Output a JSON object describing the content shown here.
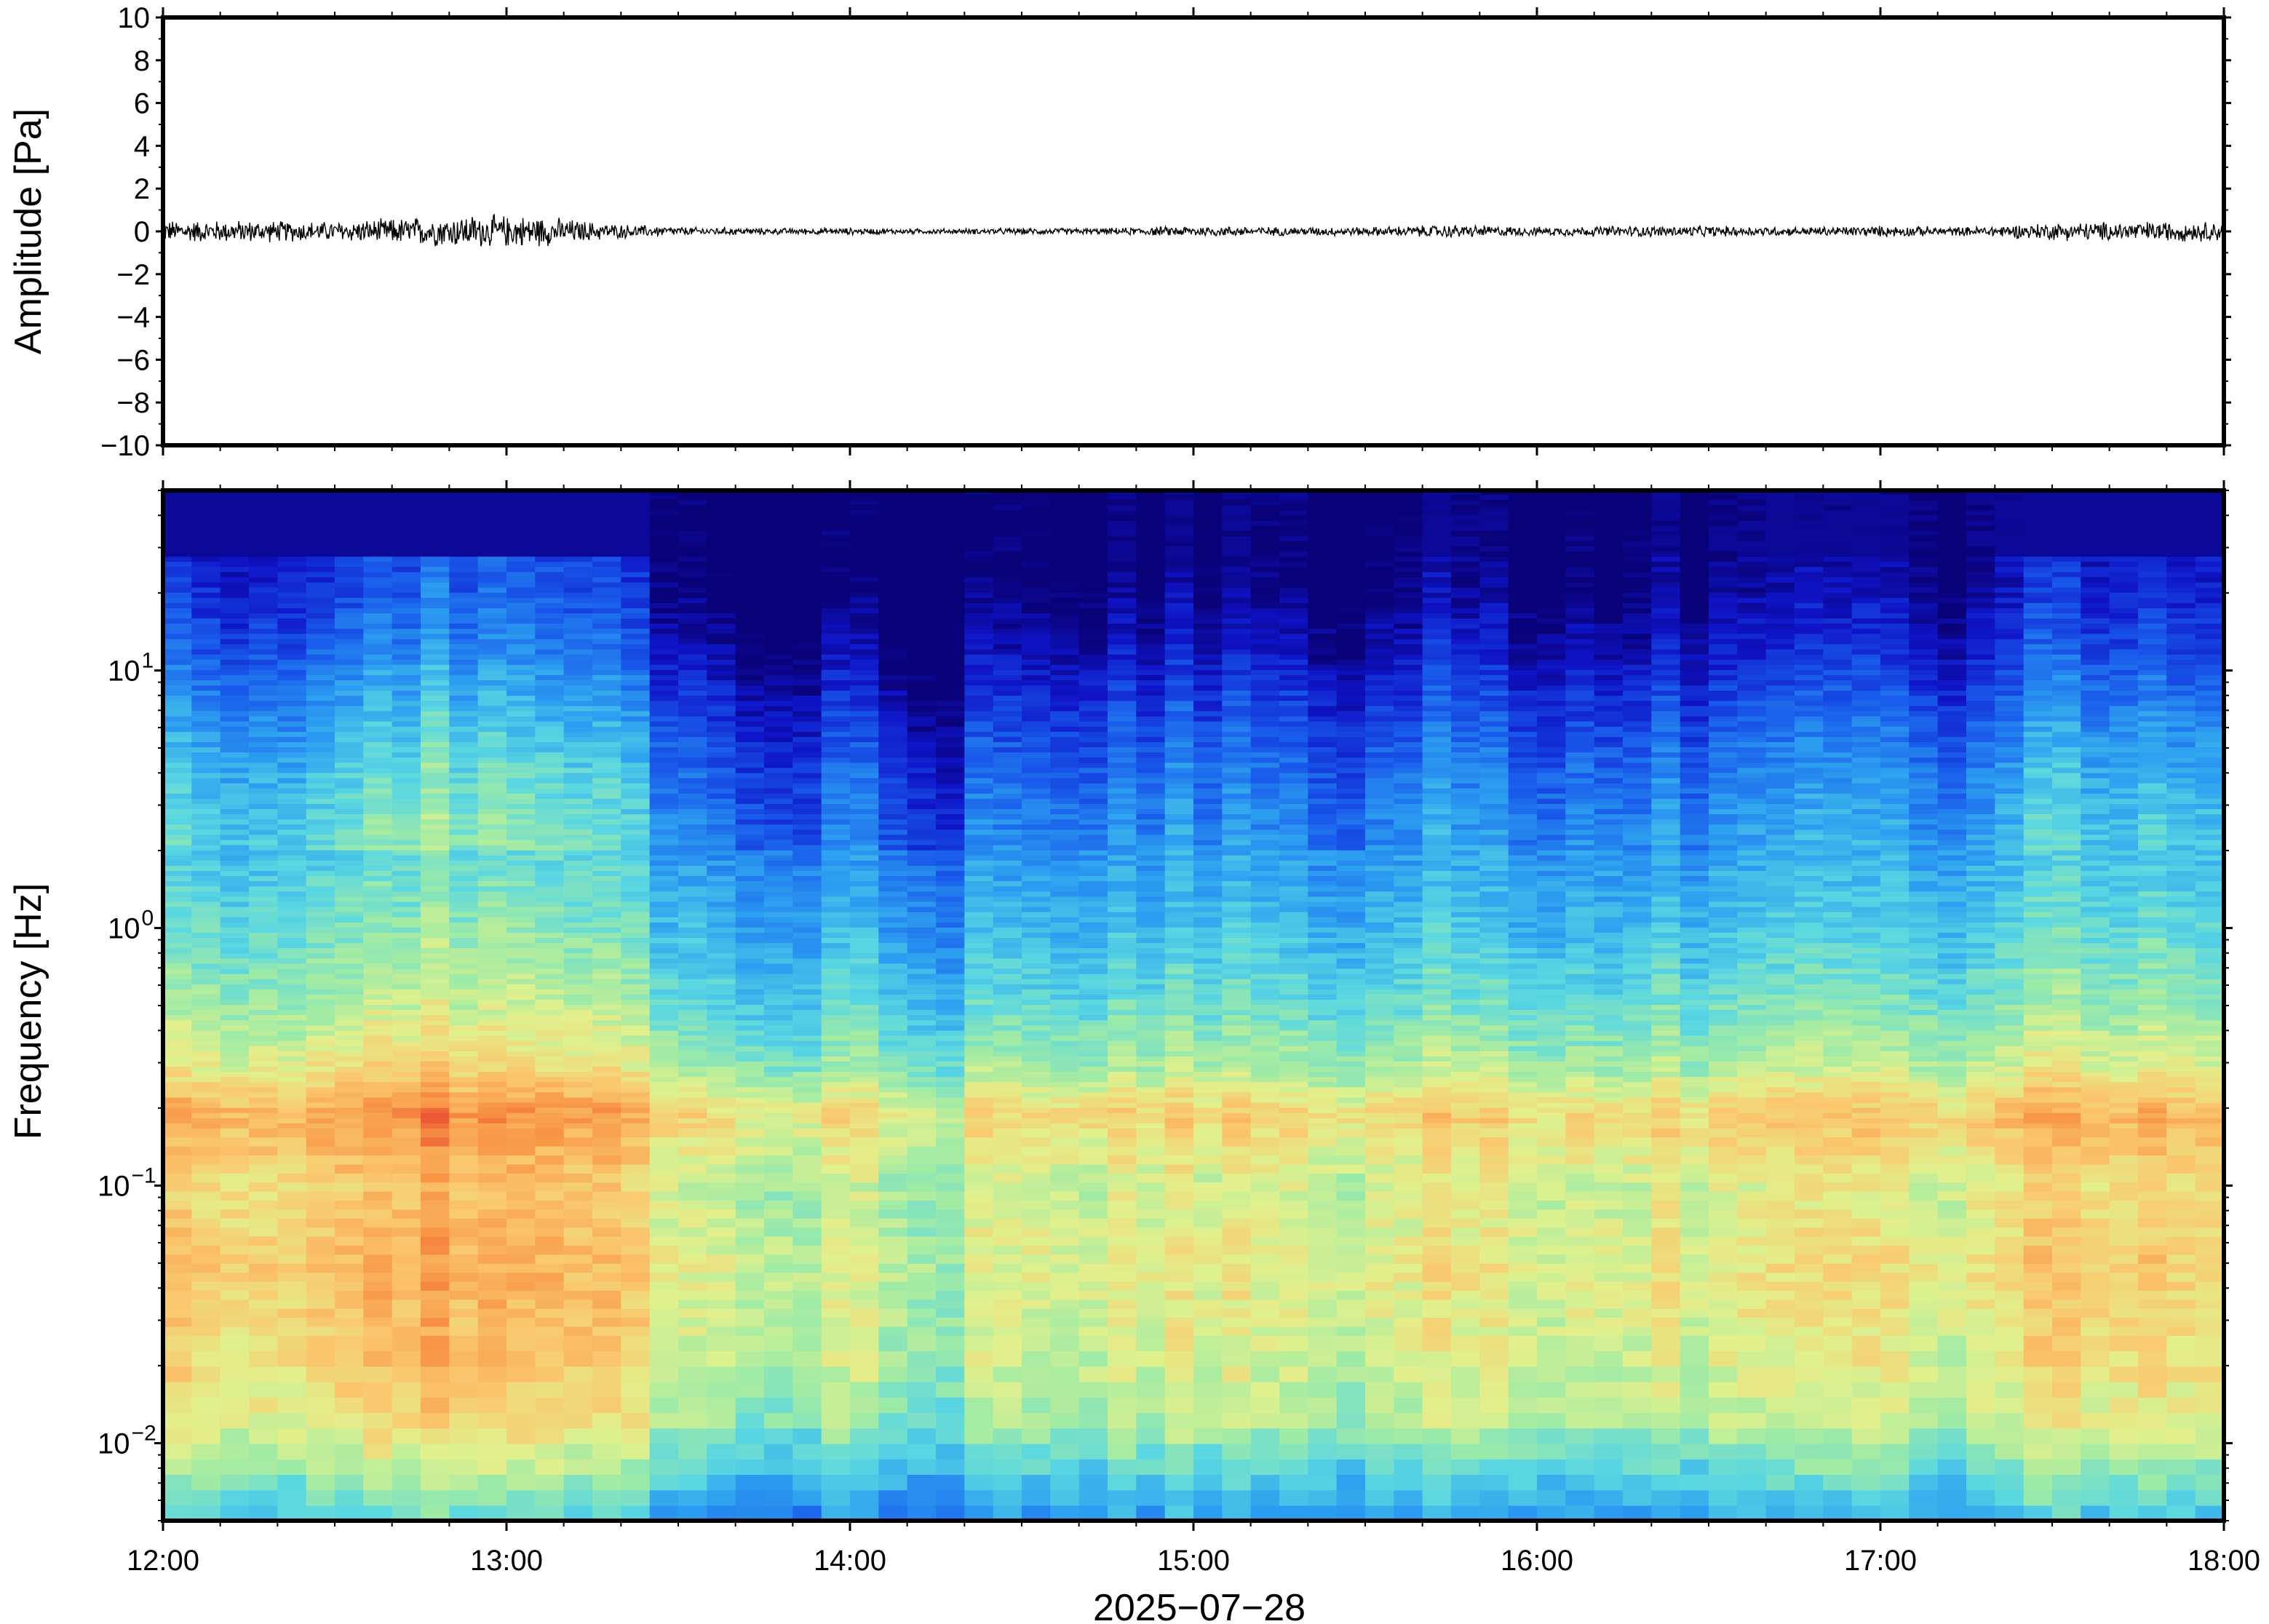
{
  "chart_data": [
    {
      "type": "line",
      "panel": "waveform",
      "ylabel": "Amplitude [Pa]",
      "ylim": [
        -10,
        10
      ],
      "yticks": [
        -10,
        -8,
        -6,
        -4,
        -2,
        0,
        2,
        4,
        6,
        8,
        10
      ],
      "ytick_labels": [
        "−10",
        "−8",
        "−6",
        "−4",
        "−2",
        "0",
        "2",
        "4",
        "6",
        "8",
        "10"
      ],
      "x_range": [
        "12:00",
        "18:00"
      ],
      "series": [
        {
          "x_hours": [
            12.0,
            12.25,
            12.5,
            12.75,
            12.9,
            13.1,
            13.3,
            13.5,
            13.75,
            14.0,
            14.25,
            14.5,
            14.75,
            15.0,
            15.25,
            15.5,
            15.75,
            16.0,
            16.25,
            16.5,
            16.75,
            17.0,
            17.25,
            17.5,
            17.75,
            18.0
          ],
          "envelope": [
            0.5,
            0.5,
            0.45,
            0.65,
            0.75,
            0.7,
            0.35,
            0.2,
            0.15,
            0.15,
            0.12,
            0.15,
            0.15,
            0.25,
            0.2,
            0.2,
            0.3,
            0.2,
            0.25,
            0.25,
            0.2,
            0.25,
            0.2,
            0.4,
            0.45,
            0.45
          ],
          "color": "#000000"
        }
      ]
    },
    {
      "type": "heatmap",
      "panel": "spectrogram",
      "xlabel": "2025−07−28",
      "ylabel": "Frequency [Hz]",
      "y_scale": "log",
      "ylim": [
        0.005,
        50
      ],
      "ytick_labels": [
        {
          "base": "10",
          "exp": "−2",
          "value": 0.01
        },
        {
          "base": "10",
          "exp": "−1",
          "value": 0.1
        },
        {
          "base": "10",
          "exp": "0",
          "value": 1
        },
        {
          "base": "10",
          "exp": "1",
          "value": 10
        }
      ],
      "xticks": [
        "12:00",
        "13:00",
        "14:00",
        "15:00",
        "16:00",
        "17:00",
        "18:00"
      ],
      "colormap": "jet",
      "profile": {
        "log10_freq": [
          -2.3,
          -2.05,
          -1.9,
          -1.7,
          -1.3,
          -1.0,
          -0.72,
          -0.55,
          -0.3,
          0.0,
          0.3,
          0.6,
          0.9,
          1.1,
          1.3,
          1.4,
          1.7
        ],
        "level": [
          0.36,
          0.52,
          0.6,
          0.64,
          0.68,
          0.64,
          0.74,
          0.6,
          0.5,
          0.42,
          0.36,
          0.3,
          0.2,
          0.12,
          0.06,
          0.04,
          0.03
        ]
      },
      "column_intensity": {
        "x_hours": [
          12.0,
          12.3,
          12.5,
          12.75,
          13.0,
          13.2,
          13.4,
          13.6,
          13.8,
          14.0,
          14.2,
          14.3,
          14.4,
          14.6,
          14.8,
          15.1,
          15.3,
          15.5,
          15.7,
          16.0,
          16.3,
          16.6,
          16.9,
          17.2,
          17.5,
          17.7,
          18.0
        ],
        "offset": [
          0.07,
          0.06,
          0.09,
          0.12,
          0.13,
          0.1,
          0.02,
          -0.04,
          -0.06,
          -0.05,
          -0.08,
          -0.12,
          -0.03,
          -0.05,
          -0.04,
          0.0,
          -0.04,
          -0.04,
          0.0,
          -0.02,
          -0.01,
          -0.02,
          0.0,
          -0.01,
          0.05,
          0.06,
          0.05
        ]
      }
    }
  ]
}
